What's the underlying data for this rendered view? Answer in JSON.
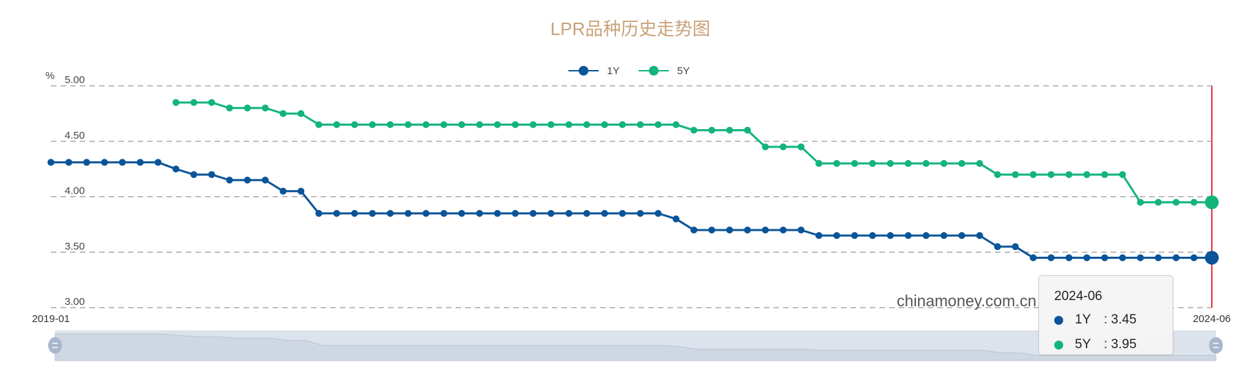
{
  "chart_data": {
    "type": "line",
    "title": "LPR品种历史走势图",
    "ylabel": "%",
    "ylim": [
      3.0,
      5.0
    ],
    "yticks": [
      "3.00",
      "3.50",
      "4.00",
      "4.50",
      "5.00"
    ],
    "xtick_labels": [
      "2019-01",
      "2024-06"
    ],
    "grid": true,
    "legend": "top-center",
    "x_start": "2019-01",
    "x_end": "2024-06",
    "series": [
      {
        "name": "1Y",
        "color": "#0a5499",
        "values": [
          4.31,
          4.31,
          4.31,
          4.31,
          4.31,
          4.31,
          4.31,
          4.25,
          4.2,
          4.2,
          4.15,
          4.15,
          4.15,
          4.05,
          4.05,
          3.85,
          3.85,
          3.85,
          3.85,
          3.85,
          3.85,
          3.85,
          3.85,
          3.85,
          3.85,
          3.85,
          3.85,
          3.85,
          3.85,
          3.85,
          3.85,
          3.85,
          3.85,
          3.85,
          3.85,
          3.8,
          3.7,
          3.7,
          3.7,
          3.7,
          3.7,
          3.7,
          3.7,
          3.65,
          3.65,
          3.65,
          3.65,
          3.65,
          3.65,
          3.65,
          3.65,
          3.65,
          3.65,
          3.55,
          3.55,
          3.45,
          3.45,
          3.45,
          3.45,
          3.45,
          3.45,
          3.45,
          3.45,
          3.45,
          3.45,
          3.45
        ]
      },
      {
        "name": "5Y",
        "color": "#12b47a",
        "values": [
          null,
          null,
          null,
          null,
          null,
          null,
          null,
          4.85,
          4.85,
          4.85,
          4.8,
          4.8,
          4.8,
          4.75,
          4.75,
          4.65,
          4.65,
          4.65,
          4.65,
          4.65,
          4.65,
          4.65,
          4.65,
          4.65,
          4.65,
          4.65,
          4.65,
          4.65,
          4.65,
          4.65,
          4.65,
          4.65,
          4.65,
          4.65,
          4.65,
          4.65,
          4.6,
          4.6,
          4.6,
          4.6,
          4.45,
          4.45,
          4.45,
          4.3,
          4.3,
          4.3,
          4.3,
          4.3,
          4.3,
          4.3,
          4.3,
          4.3,
          4.3,
          4.2,
          4.2,
          4.2,
          4.2,
          4.2,
          4.2,
          4.2,
          4.2,
          3.95,
          3.95,
          3.95,
          3.95,
          3.95
        ]
      }
    ],
    "pointer_color": "#e8313a",
    "title_color": "#c8a27a"
  },
  "watermark": "chinamoney.com.cn",
  "tooltip": {
    "date": "2024-06",
    "rows": [
      {
        "name": "1Y",
        "value": ": 3.45",
        "color": "#0a5499"
      },
      {
        "name": "5Y",
        "value": ": 3.95",
        "color": "#12b47a"
      }
    ]
  }
}
